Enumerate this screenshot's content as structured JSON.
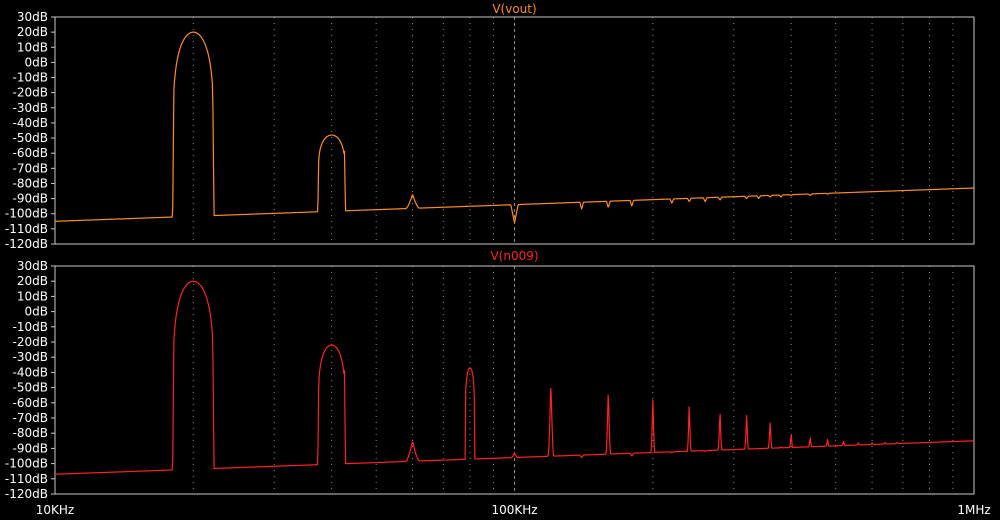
{
  "colors": {
    "background": "#000000",
    "frame": "#c8c8c8",
    "grid": "#8a8a8a",
    "text": "#ffffff"
  },
  "chart_data": {
    "type": "line",
    "xscale": "log",
    "xlim": [
      10000,
      1000000
    ],
    "x_tick_labels": [
      {
        "value": 10000,
        "label": "10KHz"
      },
      {
        "value": 100000,
        "label": "100KHz"
      },
      {
        "value": 1000000,
        "label": "1MHz"
      }
    ],
    "grid": true,
    "panels": [
      {
        "title": "V(vout)",
        "color": "#ff8c1a",
        "ylim": [
          -120,
          30
        ],
        "yticks": [
          {
            "value": 30,
            "label": "30dB"
          },
          {
            "value": 20,
            "label": "20dB"
          },
          {
            "value": 10,
            "label": "10dB"
          },
          {
            "value": 0,
            "label": "0dB"
          },
          {
            "value": -10,
            "label": "-10dB"
          },
          {
            "value": -20,
            "label": "-20dB"
          },
          {
            "value": -30,
            "label": "-30dB"
          },
          {
            "value": -40,
            "label": "-40dB"
          },
          {
            "value": -50,
            "label": "-50dB"
          },
          {
            "value": -60,
            "label": "-60dB"
          },
          {
            "value": -70,
            "label": "-70dB"
          },
          {
            "value": -80,
            "label": "-80dB"
          },
          {
            "value": -90,
            "label": "-90dB"
          },
          {
            "value": -100,
            "label": "-100dB"
          },
          {
            "value": -110,
            "label": "-110dB"
          },
          {
            "value": -120,
            "label": "-120dB"
          }
        ],
        "floor": {
          "start_db": -105,
          "end_db": -83,
          "start_freq": 10000,
          "end_freq": 1000000
        },
        "peaks": [
          {
            "freq": 20000,
            "db": 20,
            "halfwidth": 0.045,
            "flat": true
          },
          {
            "freq": 40000,
            "db": -48,
            "halfwidth": 0.03,
            "flat": true
          },
          {
            "freq": 60000,
            "db": -87,
            "halfwidth": 0.015,
            "flat": false
          },
          {
            "freq": 80000,
            "db": -95,
            "halfwidth": 0.01,
            "flat": false
          },
          {
            "freq": 100000,
            "db": -106,
            "halfwidth": 0.008,
            "flat": false
          },
          {
            "freq": 140000,
            "db": -97,
            "halfwidth": 0.004,
            "flat": false
          },
          {
            "freq": 160000,
            "db": -96,
            "halfwidth": 0.004,
            "flat": false
          },
          {
            "freq": 180000,
            "db": -95,
            "halfwidth": 0.004,
            "flat": false
          },
          {
            "freq": 220000,
            "db": -93,
            "halfwidth": 0.004,
            "flat": false
          },
          {
            "freq": 240000,
            "db": -92,
            "halfwidth": 0.004,
            "flat": false
          },
          {
            "freq": 260000,
            "db": -92,
            "halfwidth": 0.004,
            "flat": false
          },
          {
            "freq": 280000,
            "db": -91,
            "halfwidth": 0.004,
            "flat": false
          },
          {
            "freq": 320000,
            "db": -90,
            "halfwidth": 0.004,
            "flat": false
          },
          {
            "freq": 340000,
            "db": -90,
            "halfwidth": 0.004,
            "flat": false
          },
          {
            "freq": 360000,
            "db": -89,
            "halfwidth": 0.004,
            "flat": false
          },
          {
            "freq": 380000,
            "db": -89,
            "halfwidth": 0.004,
            "flat": false
          },
          {
            "freq": 400000,
            "db": -88,
            "halfwidth": 0.004,
            "flat": false
          },
          {
            "freq": 440000,
            "db": -88,
            "halfwidth": 0.004,
            "flat": false
          },
          {
            "freq": 480000,
            "db": -87,
            "halfwidth": 0.004,
            "flat": false
          }
        ]
      },
      {
        "title": "V(n009)",
        "color": "#ff2020",
        "ylim": [
          -120,
          30
        ],
        "yticks": [
          {
            "value": 30,
            "label": "30dB"
          },
          {
            "value": 20,
            "label": "20dB"
          },
          {
            "value": 10,
            "label": "10dB"
          },
          {
            "value": 0,
            "label": "0dB"
          },
          {
            "value": -10,
            "label": "-10dB"
          },
          {
            "value": -20,
            "label": "-20dB"
          },
          {
            "value": -30,
            "label": "-30dB"
          },
          {
            "value": -40,
            "label": "-40dB"
          },
          {
            "value": -50,
            "label": "-50dB"
          },
          {
            "value": -60,
            "label": "-60dB"
          },
          {
            "value": -70,
            "label": "-70dB"
          },
          {
            "value": -80,
            "label": "-80dB"
          },
          {
            "value": -90,
            "label": "-90dB"
          },
          {
            "value": -100,
            "label": "-100dB"
          },
          {
            "value": -110,
            "label": "-110dB"
          },
          {
            "value": -120,
            "label": "-120dB"
          }
        ],
        "floor": {
          "start_db": -107,
          "end_db": -85,
          "start_freq": 10000,
          "end_freq": 1000000
        },
        "peaks": [
          {
            "freq": 20000,
            "db": 20,
            "halfwidth": 0.045,
            "flat": true
          },
          {
            "freq": 40000,
            "db": -22,
            "halfwidth": 0.03,
            "flat": true
          },
          {
            "freq": 60000,
            "db": -85,
            "halfwidth": 0.015,
            "flat": false
          },
          {
            "freq": 80000,
            "db": -37,
            "halfwidth": 0.01,
            "flat": true
          },
          {
            "freq": 100000,
            "db": -93,
            "halfwidth": 0.007,
            "flat": false
          },
          {
            "freq": 120000,
            "db": -45,
            "halfwidth": 0.006,
            "flat": false
          },
          {
            "freq": 140000,
            "db": -96,
            "halfwidth": 0.004,
            "flat": false
          },
          {
            "freq": 160000,
            "db": -50,
            "halfwidth": 0.005,
            "flat": false
          },
          {
            "freq": 180000,
            "db": -95,
            "halfwidth": 0.004,
            "flat": false
          },
          {
            "freq": 200000,
            "db": -55,
            "halfwidth": 0.004,
            "flat": false
          },
          {
            "freq": 220000,
            "db": -93,
            "halfwidth": 0.003,
            "flat": false
          },
          {
            "freq": 240000,
            "db": -60,
            "halfwidth": 0.004,
            "flat": false
          },
          {
            "freq": 260000,
            "db": -92,
            "halfwidth": 0.003,
            "flat": false
          },
          {
            "freq": 280000,
            "db": -64,
            "halfwidth": 0.004,
            "flat": false
          },
          {
            "freq": 300000,
            "db": -91,
            "halfwidth": 0.003,
            "flat": false
          },
          {
            "freq": 320000,
            "db": -67,
            "halfwidth": 0.004,
            "flat": false
          },
          {
            "freq": 340000,
            "db": -90,
            "halfwidth": 0.003,
            "flat": false
          },
          {
            "freq": 360000,
            "db": -73,
            "halfwidth": 0.004,
            "flat": false
          },
          {
            "freq": 380000,
            "db": -89,
            "halfwidth": 0.003,
            "flat": false
          },
          {
            "freq": 400000,
            "db": -79,
            "halfwidth": 0.003,
            "flat": false
          },
          {
            "freq": 440000,
            "db": -82,
            "halfwidth": 0.003,
            "flat": false
          },
          {
            "freq": 480000,
            "db": -84,
            "halfwidth": 0.003,
            "flat": false
          },
          {
            "freq": 520000,
            "db": -85,
            "halfwidth": 0.003,
            "flat": false
          },
          {
            "freq": 560000,
            "db": -86,
            "halfwidth": 0.003,
            "flat": false
          },
          {
            "freq": 600000,
            "db": -86,
            "halfwidth": 0.003,
            "flat": false
          },
          {
            "freq": 640000,
            "db": -86,
            "halfwidth": 0.003,
            "flat": false
          },
          {
            "freq": 680000,
            "db": -86,
            "halfwidth": 0.003,
            "flat": false
          }
        ]
      }
    ]
  }
}
